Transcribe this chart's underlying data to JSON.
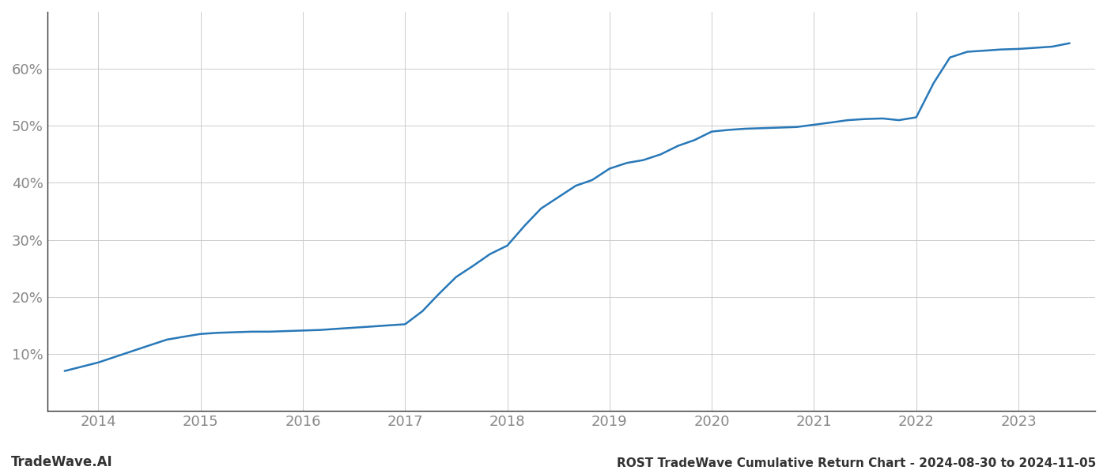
{
  "title": "ROST TradeWave Cumulative Return Chart - 2024-08-30 to 2024-11-05",
  "watermark": "TradeWave.AI",
  "line_color": "#2878b8",
  "background_color": "#ffffff",
  "grid_color": "#cccccc",
  "x_years": [
    2014,
    2015,
    2016,
    2017,
    2018,
    2019,
    2020,
    2021,
    2022,
    2023
  ],
  "x_data": [
    2013.67,
    2014.0,
    2014.25,
    2014.5,
    2014.67,
    2014.83,
    2015.0,
    2015.17,
    2015.33,
    2015.5,
    2015.67,
    2015.83,
    2016.0,
    2016.17,
    2016.33,
    2016.5,
    2016.67,
    2016.83,
    2017.0,
    2017.17,
    2017.33,
    2017.5,
    2017.67,
    2017.83,
    2018.0,
    2018.17,
    2018.33,
    2018.5,
    2018.67,
    2018.83,
    2019.0,
    2019.17,
    2019.33,
    2019.5,
    2019.67,
    2019.83,
    2020.0,
    2020.17,
    2020.33,
    2020.5,
    2020.67,
    2020.83,
    2021.0,
    2021.17,
    2021.33,
    2021.5,
    2021.67,
    2021.83,
    2022.0,
    2022.17,
    2022.33,
    2022.5,
    2022.67,
    2022.83,
    2023.0,
    2023.17,
    2023.33,
    2023.5
  ],
  "y_data": [
    7.0,
    8.5,
    10.0,
    11.5,
    12.5,
    13.0,
    13.5,
    13.7,
    13.8,
    13.9,
    13.9,
    14.0,
    14.1,
    14.2,
    14.4,
    14.6,
    14.8,
    15.0,
    15.2,
    17.5,
    20.5,
    23.5,
    25.5,
    27.5,
    29.0,
    32.5,
    35.5,
    37.5,
    39.5,
    40.5,
    42.5,
    43.5,
    44.0,
    45.0,
    46.5,
    47.5,
    49.0,
    49.3,
    49.5,
    49.6,
    49.7,
    49.8,
    50.2,
    50.6,
    51.0,
    51.2,
    51.3,
    51.0,
    51.5,
    57.5,
    62.0,
    63.0,
    63.2,
    63.4,
    63.5,
    63.7,
    63.9,
    64.5
  ],
  "yticks": [
    10,
    20,
    30,
    40,
    50,
    60
  ],
  "ylim": [
    0,
    70
  ],
  "xlim": [
    2013.5,
    2023.75
  ],
  "title_fontsize": 11,
  "tick_fontsize": 13,
  "watermark_fontsize": 12,
  "title_color": "#333333",
  "tick_color": "#888888",
  "spine_color": "#333333",
  "axis_color": "#888888"
}
